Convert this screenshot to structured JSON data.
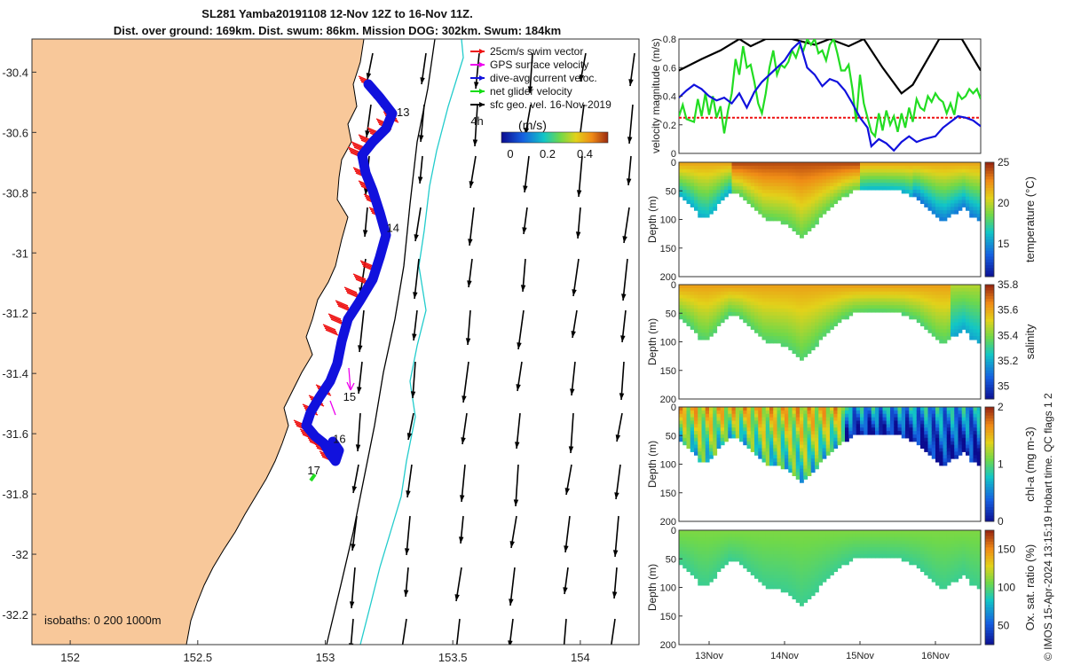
{
  "header": {
    "title_line1": "SL281 Yamba20191108 12-Nov 12Z to 16-Nov 11Z.",
    "title_line2": "Dist. over ground: 169km. Dist. swum: 86km. Mission DOG: 302km. Swum: 184km"
  },
  "map": {
    "x_ticks": [
      "152",
      "152.5",
      "153",
      "153.5",
      "154"
    ],
    "y_ticks": [
      "-30.4",
      "-30.6",
      "-30.8",
      "-31",
      "-31.2",
      "-31.4",
      "-31.6",
      "-31.8",
      "-32",
      "-32.2"
    ],
    "x_range": [
      151.85,
      154.23
    ],
    "y_range": [
      -32.3,
      -30.29
    ],
    "day_labels": [
      {
        "text": "13",
        "lon": 153.28,
        "lat": -30.546
      },
      {
        "text": "14",
        "lon": 153.24,
        "lat": -30.93
      },
      {
        "text": "15",
        "lon": 153.07,
        "lat": -31.49
      },
      {
        "text": "16",
        "lon": 153.03,
        "lat": -31.63
      },
      {
        "text": "17",
        "lon": 152.93,
        "lat": -31.735
      },
      {
        "text": "4h",
        "lon": 153.57,
        "lat": -30.575
      }
    ],
    "legend": [
      {
        "label": "25cm/s swim vector",
        "color": "#ee1111"
      },
      {
        "label": "GPS surface velocity",
        "color": "#ee00ee"
      },
      {
        "label": "dive-avg current veloc.",
        "color": "#1111dd"
      },
      {
        "label": "net glider velocity",
        "color": "#11dd11"
      },
      {
        "label": "sfc geo. vel. 16-Nov-2019",
        "color": "#000000"
      }
    ],
    "colorbar": {
      "label": "(m/s)",
      "ticks": [
        "0",
        "0.2",
        "0.4"
      ]
    },
    "isobaths_label": "isobaths: 0   200  1000m",
    "land_color": "#f8c89a",
    "track_color": "#1111dd",
    "swim_color": "#ee1111"
  },
  "velocity_panel": {
    "ylabel": "velocity magnitude (m/s)",
    "y_ticks": [
      "0",
      "0.2",
      "0.4",
      "0.6",
      "0.8"
    ],
    "y_range": [
      0,
      0.8
    ],
    "swim_ref": 0.25,
    "t_range": [
      12.6,
      16.6
    ],
    "black_series": [
      [
        12.6,
        0.58
      ],
      [
        12.9,
        0.66
      ],
      [
        13.15,
        0.72
      ],
      [
        13.4,
        0.8
      ],
      [
        13.55,
        0.75
      ],
      [
        13.75,
        0.8
      ],
      [
        14.1,
        0.8
      ],
      [
        14.4,
        0.76
      ],
      [
        14.6,
        0.8
      ],
      [
        14.85,
        0.75
      ],
      [
        15.05,
        0.8
      ],
      [
        15.3,
        0.6
      ],
      [
        15.55,
        0.42
      ],
      [
        15.7,
        0.48
      ],
      [
        16.05,
        0.8
      ],
      [
        16.35,
        0.8
      ],
      [
        16.6,
        0.58
      ]
    ],
    "blue_series": [
      [
        12.6,
        0.39
      ],
      [
        12.7,
        0.44
      ],
      [
        12.8,
        0.48
      ],
      [
        12.9,
        0.45
      ],
      [
        13.0,
        0.4
      ],
      [
        13.1,
        0.37
      ],
      [
        13.2,
        0.39
      ],
      [
        13.3,
        0.35
      ],
      [
        13.4,
        0.42
      ],
      [
        13.5,
        0.32
      ],
      [
        13.6,
        0.43
      ],
      [
        13.7,
        0.5
      ],
      [
        13.8,
        0.55
      ],
      [
        13.9,
        0.6
      ],
      [
        14.0,
        0.65
      ],
      [
        14.1,
        0.73
      ],
      [
        14.2,
        0.78
      ],
      [
        14.3,
        0.6
      ],
      [
        14.4,
        0.55
      ],
      [
        14.5,
        0.47
      ],
      [
        14.6,
        0.52
      ],
      [
        14.7,
        0.5
      ],
      [
        14.8,
        0.44
      ],
      [
        14.9,
        0.35
      ],
      [
        15.0,
        0.25
      ],
      [
        15.1,
        0.18
      ],
      [
        15.15,
        0.05
      ],
      [
        15.25,
        0.1
      ],
      [
        15.35,
        0.07
      ],
      [
        15.45,
        0.02
      ],
      [
        15.55,
        0.08
      ],
      [
        15.65,
        0.12
      ],
      [
        15.75,
        0.08
      ],
      [
        15.85,
        0.1
      ],
      [
        16.0,
        0.12
      ],
      [
        16.1,
        0.18
      ],
      [
        16.2,
        0.22
      ],
      [
        16.3,
        0.26
      ],
      [
        16.4,
        0.25
      ],
      [
        16.5,
        0.23
      ],
      [
        16.6,
        0.19
      ]
    ],
    "green_series": [
      [
        12.6,
        0.26
      ],
      [
        12.65,
        0.34
      ],
      [
        12.7,
        0.24
      ],
      [
        12.8,
        0.22
      ],
      [
        12.85,
        0.38
      ],
      [
        12.9,
        0.26
      ],
      [
        12.95,
        0.42
      ],
      [
        13.0,
        0.27
      ],
      [
        13.05,
        0.4
      ],
      [
        13.1,
        0.25
      ],
      [
        13.15,
        0.33
      ],
      [
        13.2,
        0.14
      ],
      [
        13.25,
        0.3
      ],
      [
        13.3,
        0.42
      ],
      [
        13.35,
        0.66
      ],
      [
        13.4,
        0.55
      ],
      [
        13.45,
        0.75
      ],
      [
        13.5,
        0.6
      ],
      [
        13.55,
        0.62
      ],
      [
        13.6,
        0.5
      ],
      [
        13.65,
        0.35
      ],
      [
        13.7,
        0.28
      ],
      [
        13.75,
        0.42
      ],
      [
        13.8,
        0.6
      ],
      [
        13.85,
        0.72
      ],
      [
        13.9,
        0.55
      ],
      [
        13.95,
        0.62
      ],
      [
        14.0,
        0.6
      ],
      [
        14.05,
        0.64
      ],
      [
        14.1,
        0.72
      ],
      [
        14.15,
        0.67
      ],
      [
        14.2,
        0.75
      ],
      [
        14.25,
        0.72
      ],
      [
        14.3,
        0.8
      ],
      [
        14.35,
        0.76
      ],
      [
        14.4,
        0.8
      ],
      [
        14.45,
        0.7
      ],
      [
        14.5,
        0.72
      ],
      [
        14.55,
        0.65
      ],
      [
        14.6,
        0.76
      ],
      [
        14.65,
        0.8
      ],
      [
        14.7,
        0.7
      ],
      [
        14.75,
        0.58
      ],
      [
        14.8,
        0.58
      ],
      [
        14.85,
        0.62
      ],
      [
        14.9,
        0.45
      ],
      [
        14.95,
        0.22
      ],
      [
        15.0,
        0.55
      ],
      [
        15.05,
        0.35
      ],
      [
        15.1,
        0.25
      ],
      [
        15.15,
        0.15
      ],
      [
        15.2,
        0.12
      ],
      [
        15.25,
        0.28
      ],
      [
        15.3,
        0.16
      ],
      [
        15.35,
        0.3
      ],
      [
        15.4,
        0.2
      ],
      [
        15.45,
        0.26
      ],
      [
        15.5,
        0.15
      ],
      [
        15.55,
        0.28
      ],
      [
        15.6,
        0.18
      ],
      [
        15.65,
        0.32
      ],
      [
        15.7,
        0.22
      ],
      [
        15.75,
        0.38
      ],
      [
        15.8,
        0.32
      ],
      [
        15.85,
        0.3
      ],
      [
        15.9,
        0.4
      ],
      [
        15.95,
        0.36
      ],
      [
        16.0,
        0.42
      ],
      [
        16.05,
        0.38
      ],
      [
        16.1,
        0.36
      ],
      [
        16.15,
        0.28
      ],
      [
        16.2,
        0.35
      ],
      [
        16.25,
        0.27
      ],
      [
        16.3,
        0.42
      ],
      [
        16.35,
        0.38
      ],
      [
        16.4,
        0.4
      ],
      [
        16.45,
        0.45
      ],
      [
        16.5,
        0.42
      ],
      [
        16.55,
        0.45
      ],
      [
        16.6,
        0.38
      ]
    ]
  },
  "section_panels": [
    {
      "key": "temperature",
      "label": "temperature (°C)",
      "cbar_ticks": [
        "25",
        "20",
        "15"
      ],
      "cbar_min": 11,
      "cbar_max": 25,
      "cbar_tick_values": [
        25,
        20,
        15
      ],
      "surface_value": 22,
      "deep_value": 16
    },
    {
      "key": "salinity",
      "label": "salinity",
      "cbar_ticks": [
        "35.8",
        "35.6",
        "35.4",
        "35.2",
        "35"
      ],
      "cbar_min": 34.9,
      "cbar_max": 35.8,
      "cbar_tick_values": [
        35.8,
        35.6,
        35.4,
        35.2,
        35.0
      ],
      "surface_value": 35.62,
      "deep_value": 35.35
    },
    {
      "key": "chla",
      "label": "chl-a (mg m-3)",
      "cbar_ticks": [
        "2",
        "1",
        "0"
      ],
      "cbar_min": 0,
      "cbar_max": 2,
      "cbar_tick_values": [
        2,
        1,
        0
      ],
      "surface_value": 1.2,
      "deep_value": 0.2
    },
    {
      "key": "oxygen",
      "label": "Ox. sat. ratio (%)",
      "cbar_ticks": [
        "150",
        "100",
        "50"
      ],
      "cbar_min": 25,
      "cbar_max": 175,
      "cbar_tick_values": [
        150,
        100,
        50
      ],
      "surface_value": 110,
      "deep_value": 95
    }
  ],
  "sections_common": {
    "ylabel": "Depth (m)",
    "depth_ticks": [
      "0",
      "50",
      "100",
      "150",
      "200"
    ],
    "depth_range": [
      0,
      200
    ],
    "time_ticks": [
      "13Nov",
      "14Nov",
      "15Nov",
      "16Nov"
    ],
    "time_tick_values": [
      13,
      14,
      15,
      16
    ],
    "qc_label": "QC flags 1  2",
    "bathy_profile": [
      [
        12.6,
        55
      ],
      [
        12.75,
        72
      ],
      [
        12.85,
        90
      ],
      [
        12.95,
        95
      ],
      [
        13.05,
        80
      ],
      [
        13.15,
        62
      ],
      [
        13.25,
        48
      ],
      [
        13.4,
        55
      ],
      [
        13.55,
        75
      ],
      [
        13.7,
        95
      ],
      [
        13.85,
        100
      ],
      [
        14.0,
        105
      ],
      [
        14.1,
        115
      ],
      [
        14.2,
        130
      ],
      [
        14.3,
        118
      ],
      [
        14.45,
        95
      ],
      [
        14.6,
        75
      ],
      [
        14.75,
        58
      ],
      [
        14.9,
        48
      ],
      [
        15.1,
        45
      ],
      [
        15.3,
        45
      ],
      [
        15.55,
        48
      ],
      [
        15.75,
        60
      ],
      [
        15.9,
        80
      ],
      [
        16.0,
        95
      ],
      [
        16.1,
        100
      ],
      [
        16.2,
        90
      ],
      [
        16.35,
        75
      ],
      [
        16.45,
        90
      ],
      [
        16.55,
        100
      ],
      [
        16.6,
        102
      ]
    ]
  },
  "footer": {
    "stamp": "© IMOS 15-Apr-2024 13:15:19 Hobart time."
  }
}
